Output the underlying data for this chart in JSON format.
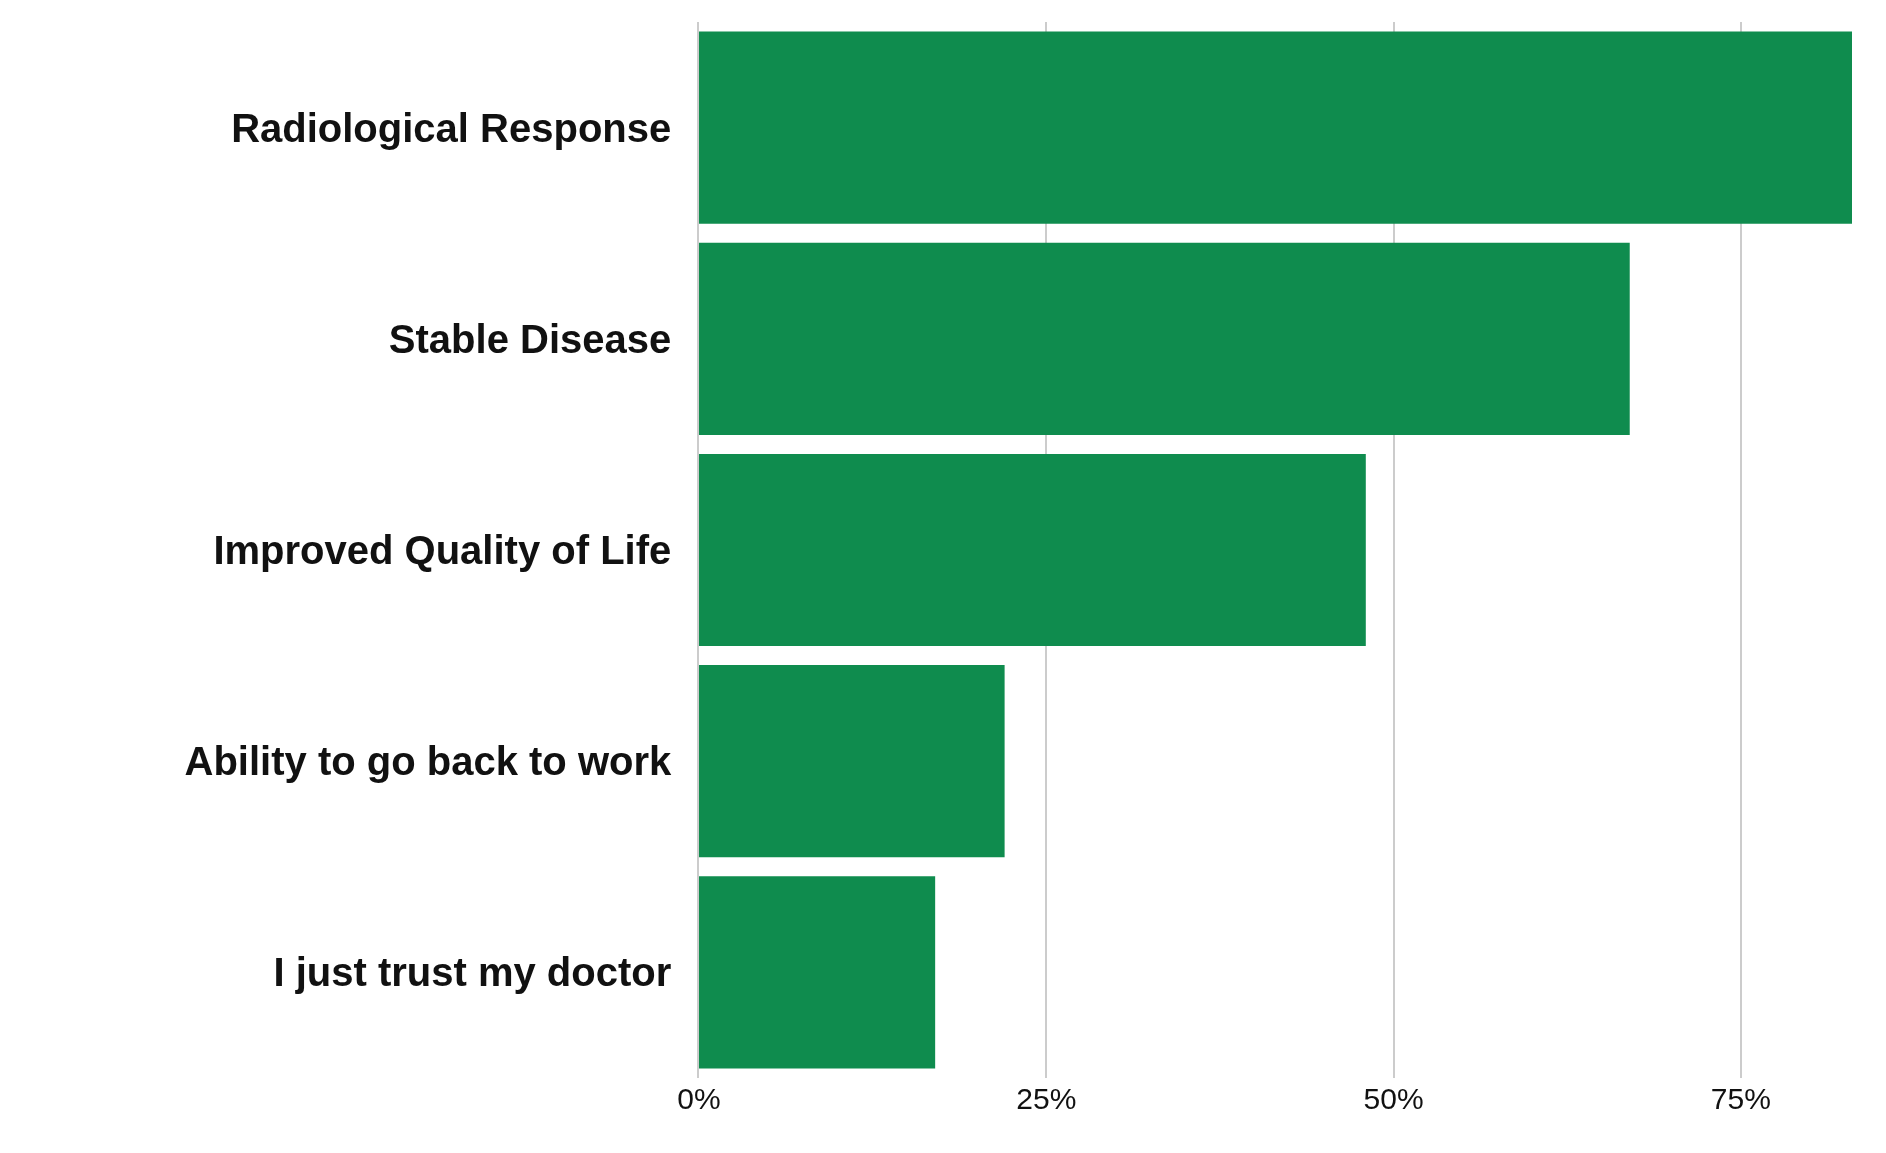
{
  "chart_data": {
    "type": "bar",
    "orientation": "horizontal",
    "categories": [
      "Radiological Response",
      "Stable Disease",
      "Improved Quality of Life",
      "Ability to go back to work",
      "I just trust my doctor"
    ],
    "values": [
      83,
      67,
      48,
      22,
      17
    ],
    "color": "#0f8c4e",
    "xlim": [
      0,
      83
    ],
    "xticks": [
      {
        "value": 0,
        "label": "0%"
      },
      {
        "value": 25,
        "label": "25%"
      },
      {
        "value": 50,
        "label": "50%"
      },
      {
        "value": 75,
        "label": "75%"
      }
    ],
    "grid": "x"
  }
}
